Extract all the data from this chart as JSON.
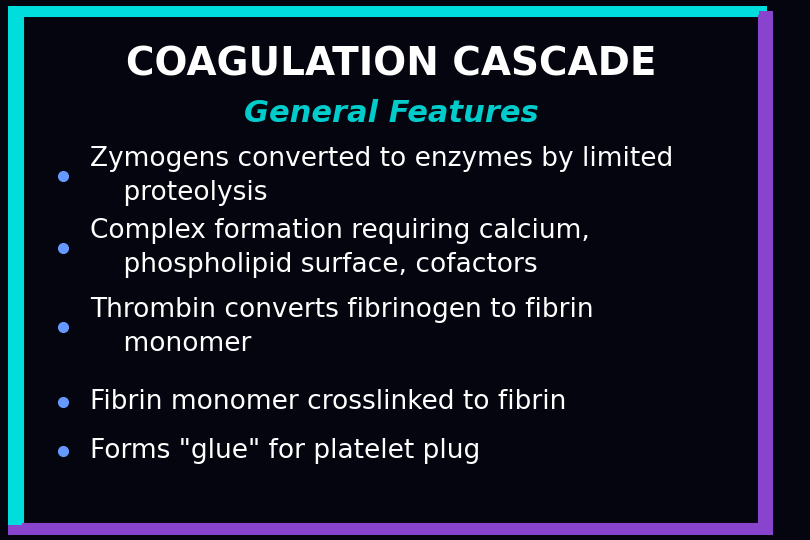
{
  "title": "COAGULATION CASCADE",
  "subtitle": "General Features",
  "background_color": "#050510",
  "title_color": "#ffffff",
  "subtitle_color": "#00cccc",
  "bullet_color": "#ffffff",
  "bullet_dot_color": "#6699ff",
  "border_color_left": "#00dddd",
  "border_color_right": "#8844cc",
  "title_fontsize": 28,
  "subtitle_fontsize": 22,
  "bullet_fontsize": 19,
  "bullets": [
    "Zymogens converted to enzymes by limited\n    proteolysis",
    "Complex formation requiring calcium,\n    phospholipid surface, cofactors",
    "Thrombin converts fibrinogen to fibrin\n    monomer",
    "Fibrin monomer crosslinked to fibrin",
    "Forms \"glue\" for platelet plug"
  ]
}
